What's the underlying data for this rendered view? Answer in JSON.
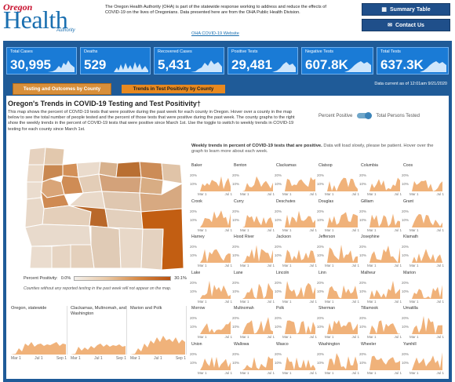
{
  "header": {
    "logo_top": "Oregon",
    "logo_main": "Health",
    "logo_sub": "Authority",
    "intro_text": "The Oregon Health Authority (OHA) is part of the statewide response working to address and reduce the effects of COVID-19 on the lives of Oregonians. Data presented here are from the OHA Public Health Division.",
    "intro_link": "OHA COVID-19 Website",
    "summary_button": "Summary Table",
    "contact_button": "Contact Us"
  },
  "kpis": [
    {
      "title": "Total Cases",
      "value": "30,995"
    },
    {
      "title": "Deaths",
      "value": "529"
    },
    {
      "title": "Recovered Cases",
      "value": "5,431"
    },
    {
      "title": "Positive Tests",
      "value": "29,481"
    },
    {
      "title": "Negative Tests",
      "value": "607.8K"
    },
    {
      "title": "Total Tests",
      "value": "637.3K"
    }
  ],
  "tabs": {
    "tab1": "Testing and Outcomes by County",
    "tab2": "Trends in Test Positivity by County"
  },
  "as_of": "Data current as of 12:01am 9/21/2020",
  "panel": {
    "title": "Oregon's Trends in COVID-19 Testing and Test Positivity†",
    "description": "This map shows the percent of COVID-19 tests that were positive during the past week for each county in Oregon. Hover over a county in the map below to see the total number of people tested and the percent of those tests that were positive during the past week. The county graphs to the right show the weekly trends in the percent of COVID-19 tests that were positive since March 1st. Use the toggle to switch to weekly trends in COVID-19 testing for each county since March 1st.",
    "toggle_left": "Percent Positive",
    "toggle_right": "Total Persons Tested"
  },
  "legend": {
    "label": "Percent Positivity:",
    "min": "0.0%",
    "max": "30.1%",
    "note": "Counties without any reported testing in the past week will not appear on the map."
  },
  "weekly_title_bold": "Weekly trends in percent of COVID-19 tests that are positive.",
  "weekly_title_rest": " Data will load slowly, please be patient. Hover over the graph to learn more about each week.",
  "axis": {
    "y20": "20%",
    "y10": "10%",
    "x1": "Mar 1",
    "x2": "Jul 1"
  },
  "big_axis": {
    "x1": "Mar 1",
    "x2": "Jul 1",
    "x3": "Sep 1"
  },
  "big_charts": [
    {
      "name": "Oregon, statewide"
    },
    {
      "name": "Clackamas, Multnomah, and Washington"
    },
    {
      "name": "Marion and Polk"
    }
  ],
  "counties": [
    "Baker",
    "Benton",
    "Clackamas",
    "Clatsop",
    "Columbia",
    "Coos",
    "Crook",
    "Curry",
    "Deschutes",
    "Douglas",
    "Gilliam",
    "Grant",
    "Harney",
    "Hood River",
    "Jackson",
    "Jefferson",
    "Josephine",
    "Klamath",
    "Lake",
    "Lane",
    "Lincoln",
    "Linn",
    "Malheur",
    "Marion",
    "Morrow",
    "Multnomah",
    "Polk",
    "Sherman",
    "Tillamook",
    "Umatilla",
    "Union",
    "Wallowa",
    "Wasco",
    "Washington",
    "Wheeler",
    "Yamhill"
  ],
  "colors": {
    "brand_blue": "#1f5b98",
    "kpi_blue": "#1a7bd6",
    "orange": "#e8891f",
    "chart_fill": "#f0b27a"
  }
}
